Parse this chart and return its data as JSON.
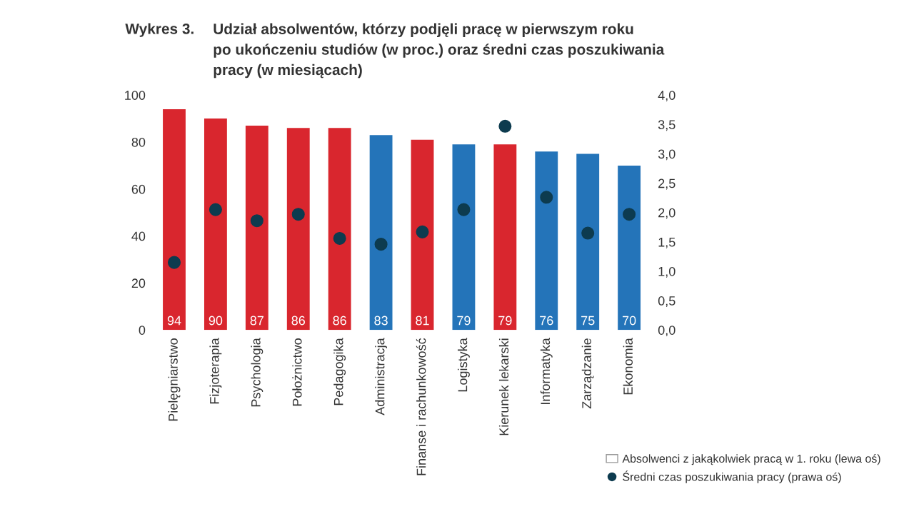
{
  "chart_data": {
    "type": "bar",
    "title": "Wykres 3.",
    "subtitle": "Udział absolwentów, którzy podjęli pracę w pierwszym roku\npo ukończeniu studiów (w proc.) oraz średni czas poszukiwania\npracy (w miesiącach)",
    "categories": [
      "Pielęgniarstwo",
      "Fizjoterapia",
      "Psychologia",
      "Położnictwo",
      "Pedagogika",
      "Administracja",
      "Finanse i rachunkowość",
      "Logistyka",
      "Kierunek lekarski",
      "Informatyka",
      "Zarządzanie",
      "Ekonomia"
    ],
    "series": [
      {
        "name": "Absolwenci z jakąkolwiek pracą w 1. roku (lewa oś)",
        "values": [
          94,
          90,
          87,
          86,
          86,
          83,
          81,
          79,
          79,
          76,
          75,
          70
        ],
        "colors": [
          "#d9262e",
          "#d9262e",
          "#d9262e",
          "#d9262e",
          "#d9262e",
          "#2474b9",
          "#d9262e",
          "#2474b9",
          "#d9262e",
          "#2474b9",
          "#2474b9",
          "#2474b9"
        ],
        "data_labels": true
      },
      {
        "name": "Średni czas poszukiwania pracy (prawa oś)",
        "type": "scatter",
        "axis": "y2",
        "color": "#0d3b4f",
        "marker": "circle",
        "values": [
          1.15,
          2.05,
          1.86,
          1.97,
          1.56,
          1.46,
          1.67,
          2.05,
          3.47,
          2.26,
          1.65,
          1.97
        ]
      }
    ],
    "ylim": [
      0,
      100
    ],
    "yticks": [
      0,
      20,
      40,
      60,
      80,
      100
    ],
    "y2lim": [
      0,
      4
    ],
    "y2ticks": [
      {
        "value": 0,
        "label": "0,0"
      },
      {
        "value": 0.5,
        "label": "0,5"
      },
      {
        "value": 1,
        "label": "1,0"
      },
      {
        "value": 1.5,
        "label": "1,5"
      },
      {
        "value": 2,
        "label": "2,0"
      },
      {
        "value": 2.5,
        "label": "2,5"
      },
      {
        "value": 3,
        "label": "3,0"
      },
      {
        "value": 3.5,
        "label": "3,5"
      },
      {
        "value": 4,
        "label": "4,0"
      }
    ],
    "grid": false,
    "legend": "bottom right"
  }
}
